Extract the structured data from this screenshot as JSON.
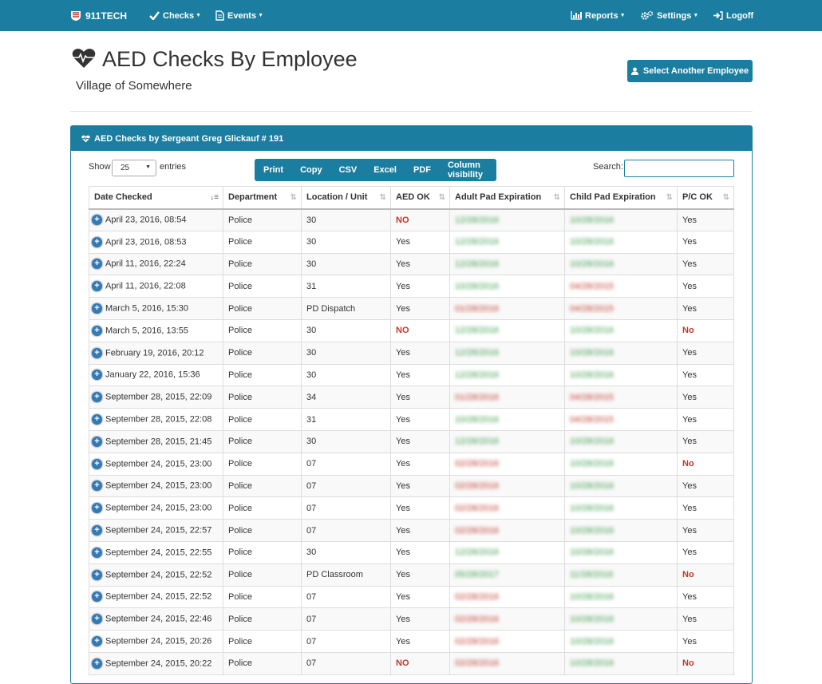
{
  "nav": {
    "brand": "911TECH",
    "checks": "Checks",
    "events": "Events",
    "reports": "Reports",
    "settings": "Settings",
    "logoff": "Logoff"
  },
  "header": {
    "title": "AED Checks By Employee",
    "subtitle": "Village of Somewhere",
    "select_button": "Select Another Employee"
  },
  "panel": {
    "heading": "AED Checks by Sergeant Greg Glickauf # 191",
    "show_label": "Show",
    "entries_value": "25",
    "entries_label": "entries",
    "buttons": [
      "Print",
      "Copy",
      "CSV",
      "Excel",
      "PDF",
      "Column visibility"
    ],
    "search_label": "Search:"
  },
  "table": {
    "columns": [
      "Date Checked",
      "Department",
      "Location / Unit",
      "AED OK",
      "Adult Pad Expiration",
      "Child Pad Expiration",
      "P/C OK"
    ],
    "rows": [
      {
        "date": "April 23, 2016, 08:54",
        "dept": "Police",
        "loc": "30",
        "aed": "NO",
        "adult": "12/28/2016",
        "adult_exp": false,
        "child": "10/28/2016",
        "child_exp": false,
        "pc": "Yes"
      },
      {
        "date": "April 23, 2016, 08:53",
        "dept": "Police",
        "loc": "30",
        "aed": "Yes",
        "adult": "12/28/2016",
        "adult_exp": false,
        "child": "10/28/2016",
        "child_exp": false,
        "pc": "Yes"
      },
      {
        "date": "April 11, 2016, 22:24",
        "dept": "Police",
        "loc": "30",
        "aed": "Yes",
        "adult": "12/28/2016",
        "adult_exp": false,
        "child": "10/28/2016",
        "child_exp": false,
        "pc": "Yes"
      },
      {
        "date": "April 11, 2016, 22:08",
        "dept": "Police",
        "loc": "31",
        "aed": "Yes",
        "adult": "10/28/2016",
        "adult_exp": false,
        "child": "04/28/2015",
        "child_exp": true,
        "pc": "Yes"
      },
      {
        "date": "March 5, 2016, 15:30",
        "dept": "Police",
        "loc": "PD Dispatch",
        "aed": "Yes",
        "adult": "01/28/2016",
        "adult_exp": true,
        "child": "04/28/2015",
        "child_exp": true,
        "pc": "Yes"
      },
      {
        "date": "March 5, 2016, 13:55",
        "dept": "Police",
        "loc": "30",
        "aed": "NO",
        "adult": "12/28/2016",
        "adult_exp": false,
        "child": "10/28/2016",
        "child_exp": false,
        "pc": "No"
      },
      {
        "date": "February 19, 2016, 20:12",
        "dept": "Police",
        "loc": "30",
        "aed": "Yes",
        "adult": "12/28/2016",
        "adult_exp": false,
        "child": "10/28/2016",
        "child_exp": false,
        "pc": "Yes"
      },
      {
        "date": "January 22, 2016, 15:36",
        "dept": "Police",
        "loc": "30",
        "aed": "Yes",
        "adult": "12/28/2016",
        "adult_exp": false,
        "child": "10/28/2016",
        "child_exp": false,
        "pc": "Yes"
      },
      {
        "date": "September 28, 2015, 22:09",
        "dept": "Police",
        "loc": "34",
        "aed": "Yes",
        "adult": "01/28/2016",
        "adult_exp": true,
        "child": "04/28/2015",
        "child_exp": true,
        "pc": "Yes"
      },
      {
        "date": "September 28, 2015, 22:08",
        "dept": "Police",
        "loc": "31",
        "aed": "Yes",
        "adult": "10/28/2016",
        "adult_exp": false,
        "child": "04/28/2015",
        "child_exp": true,
        "pc": "Yes"
      },
      {
        "date": "September 28, 2015, 21:45",
        "dept": "Police",
        "loc": "30",
        "aed": "Yes",
        "adult": "12/28/2016",
        "adult_exp": false,
        "child": "10/28/2016",
        "child_exp": false,
        "pc": "Yes"
      },
      {
        "date": "September 24, 2015, 23:00",
        "dept": "Police",
        "loc": "07",
        "aed": "Yes",
        "adult": "02/28/2016",
        "adult_exp": true,
        "child": "10/28/2016",
        "child_exp": false,
        "pc": "No"
      },
      {
        "date": "September 24, 2015, 23:00",
        "dept": "Police",
        "loc": "07",
        "aed": "Yes",
        "adult": "02/28/2016",
        "adult_exp": true,
        "child": "10/28/2016",
        "child_exp": false,
        "pc": "Yes"
      },
      {
        "date": "September 24, 2015, 23:00",
        "dept": "Police",
        "loc": "07",
        "aed": "Yes",
        "adult": "02/28/2016",
        "adult_exp": true,
        "child": "10/28/2016",
        "child_exp": false,
        "pc": "Yes"
      },
      {
        "date": "September 24, 2015, 22:57",
        "dept": "Police",
        "loc": "07",
        "aed": "Yes",
        "adult": "02/28/2016",
        "adult_exp": true,
        "child": "10/28/2016",
        "child_exp": false,
        "pc": "Yes"
      },
      {
        "date": "September 24, 2015, 22:55",
        "dept": "Police",
        "loc": "30",
        "aed": "Yes",
        "adult": "12/28/2016",
        "adult_exp": false,
        "child": "10/28/2016",
        "child_exp": false,
        "pc": "Yes"
      },
      {
        "date": "September 24, 2015, 22:52",
        "dept": "Police",
        "loc": "PD Classroom",
        "aed": "Yes",
        "adult": "05/28/2017",
        "adult_exp": false,
        "child": "11/28/2016",
        "child_exp": false,
        "pc": "No"
      },
      {
        "date": "September 24, 2015, 22:52",
        "dept": "Police",
        "loc": "07",
        "aed": "Yes",
        "adult": "02/28/2016",
        "adult_exp": true,
        "child": "10/28/2016",
        "child_exp": false,
        "pc": "Yes"
      },
      {
        "date": "September 24, 2015, 22:46",
        "dept": "Police",
        "loc": "07",
        "aed": "Yes",
        "adult": "02/28/2016",
        "adult_exp": true,
        "child": "10/28/2016",
        "child_exp": false,
        "pc": "Yes"
      },
      {
        "date": "September 24, 2015, 20:26",
        "dept": "Police",
        "loc": "07",
        "aed": "Yes",
        "adult": "02/28/2016",
        "adult_exp": true,
        "child": "10/28/2016",
        "child_exp": false,
        "pc": "Yes"
      },
      {
        "date": "September 24, 2015, 20:22",
        "dept": "Police",
        "loc": "07",
        "aed": "NO",
        "adult": "02/28/2016",
        "adult_exp": true,
        "child": "10/28/2016",
        "child_exp": false,
        "pc": "No"
      }
    ]
  }
}
